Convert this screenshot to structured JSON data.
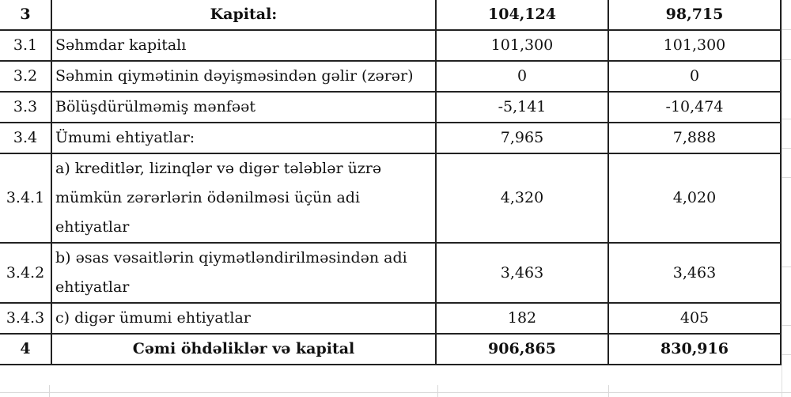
{
  "rows": [
    {
      "no": "3",
      "name": "Kapital:",
      "v1": "104,124",
      "v2": "98,715",
      "bold": true
    },
    {
      "no": "3.1",
      "name": "Səhmdar kapitalı",
      "v1": "101,300",
      "v2": "101,300"
    },
    {
      "no": "3.2",
      "name": "Səhmin qiymətinin dəyişməsindən gəlir (zərər)",
      "v1": "0",
      "v2": "0"
    },
    {
      "no": "3.3",
      "name": "Bölüşdürülməmiş mənfəət",
      "v1": "-5,141",
      "v2": "-10,474"
    },
    {
      "no": "3.4",
      "name": "Ümumi ehtiyatlar:",
      "v1": "7,965",
      "v2": "7,888"
    },
    {
      "no": "3.4.1",
      "name": "a) kreditlər, lizinqlər və digər tələblər üzrə mümkün zərərlərin ödənilməsi üçün adi ehtiyatlar",
      "v1": "4,320",
      "v2": "4,020"
    },
    {
      "no": "3.4.2",
      "name": "b) əsas vəsaitlərin qiymətləndirilməsindən adi ehtiyatlar",
      "v1": "3,463",
      "v2": "3,463"
    },
    {
      "no": "3.4.3",
      "name": "c) digər ümumi ehtiyatlar",
      "v1": "182",
      "v2": "405"
    },
    {
      "no": "4",
      "name": "Cəmi öhdəliklər və kapital",
      "v1": "906,865",
      "v2": "830,916",
      "bold": true
    }
  ]
}
